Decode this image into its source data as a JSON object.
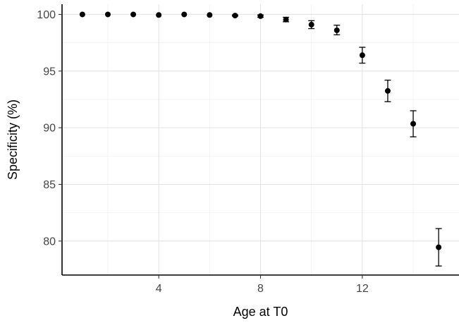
{
  "chart_data": {
    "type": "scatter",
    "title": "",
    "xlabel": "Age at T0",
    "ylabel": "Specificity (%)",
    "xlim": [
      0.2,
      15.8
    ],
    "ylim": [
      77.0,
      100.9
    ],
    "x_ticks": [
      4,
      8,
      12
    ],
    "x_minor_ticks": [
      2,
      6,
      10,
      14
    ],
    "y_ticks": [
      80,
      85,
      90,
      95,
      100
    ],
    "y_minor_ticks": [
      82.5,
      87.5,
      92.5,
      97.5
    ],
    "grid": true,
    "legend": "none",
    "series": [
      {
        "x": [
          1,
          2,
          3,
          4,
          5,
          6,
          7,
          8,
          9,
          10,
          11,
          12,
          13,
          14,
          15
        ],
        "y": [
          100.0,
          100.0,
          100.0,
          99.95,
          100.0,
          99.95,
          99.9,
          99.85,
          99.55,
          99.1,
          98.6,
          96.4,
          93.25,
          90.35,
          79.45
        ],
        "lower": [
          100.0,
          100.0,
          100.0,
          99.95,
          100.0,
          99.95,
          99.85,
          99.75,
          99.35,
          98.75,
          98.2,
          95.7,
          92.3,
          89.2,
          77.8
        ],
        "upper": [
          100.0,
          100.0,
          100.0,
          99.95,
          100.0,
          99.95,
          99.95,
          99.95,
          99.75,
          99.45,
          99.05,
          97.1,
          94.2,
          91.5,
          81.1
        ]
      }
    ]
  }
}
